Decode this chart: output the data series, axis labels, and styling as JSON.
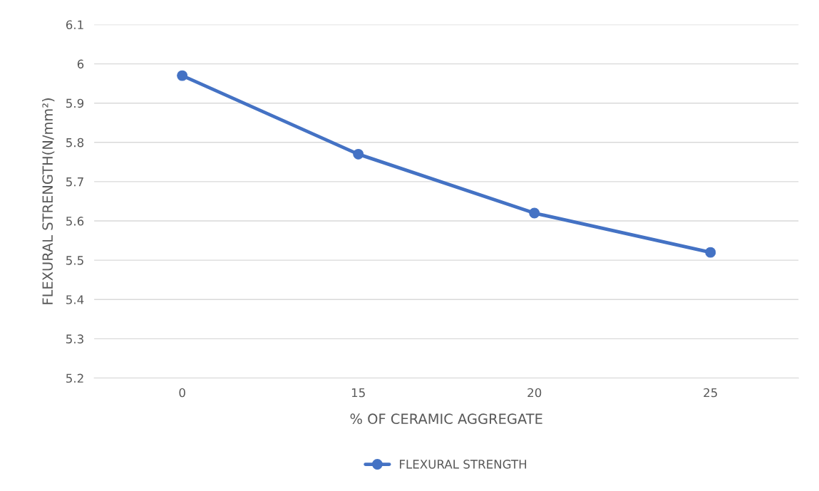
{
  "chart_data": {
    "type": "line",
    "xlabel": "% OF CERAMIC AGGREGATE",
    "ylabel": "FLEXURAL STRENGTH(N/mm²)",
    "categories": [
      "0",
      "15",
      "20",
      "25"
    ],
    "series": [
      {
        "name": "FLEXURAL STRENGTH",
        "color": "#4472c4",
        "values": [
          5.97,
          5.77,
          5.62,
          5.52
        ]
      }
    ],
    "ylim": [
      5.2,
      6.1
    ],
    "yticks": [
      5.2,
      5.3,
      5.4,
      5.5,
      5.6,
      5.7,
      5.8,
      5.9,
      6,
      6.1
    ],
    "grid": "y",
    "legend": "bottom",
    "marker": "circle",
    "line_style": "solid"
  }
}
